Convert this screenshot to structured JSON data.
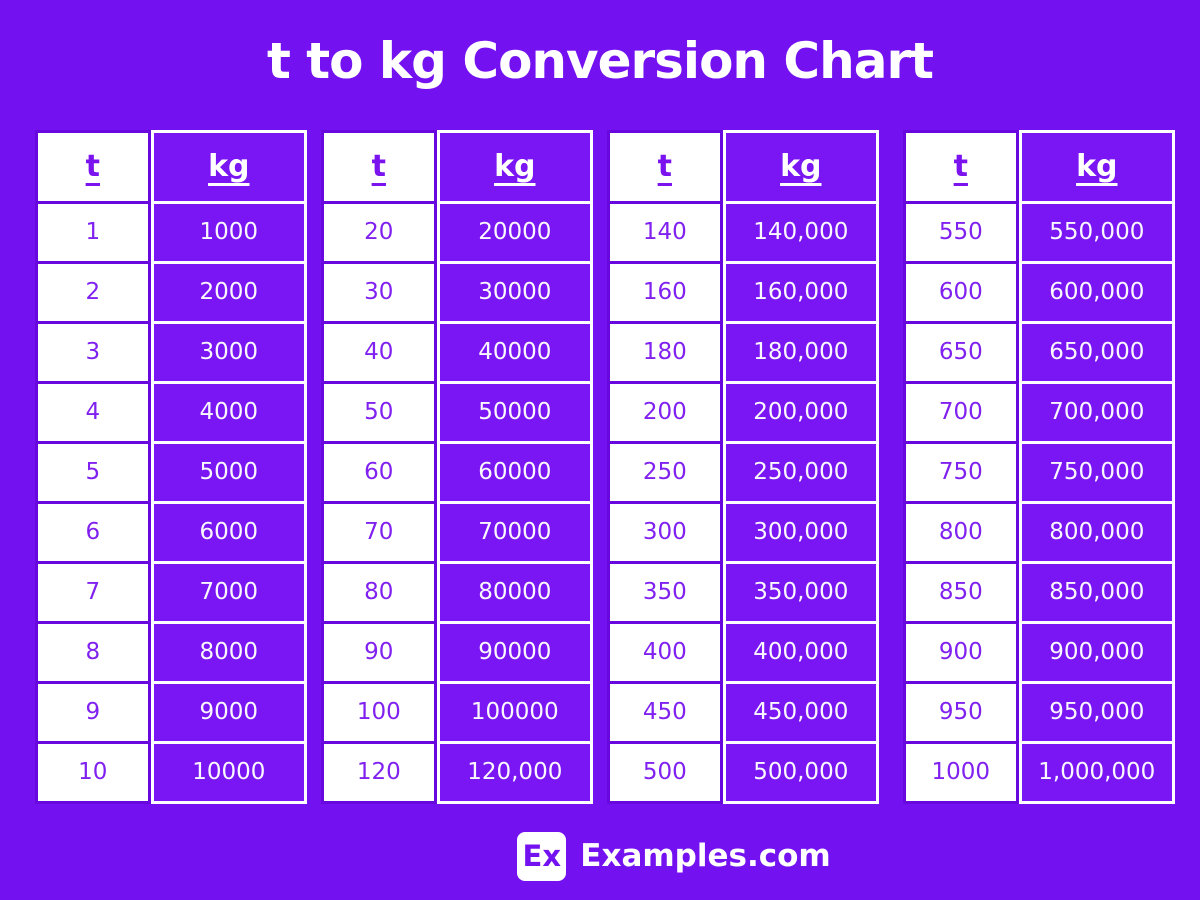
{
  "title": "t to kg Conversion Chart",
  "colors": {
    "background": "#7411F0",
    "kg_cell": "#7A15F3",
    "purple_border": "#6808DE",
    "purple_text": "#8021F0",
    "white": "#FFFFFF"
  },
  "header_labels": {
    "t": "t",
    "kg": "kg"
  },
  "chart_data": {
    "type": "table",
    "title": "t to kg Conversion Chart",
    "columns": [
      "t",
      "kg"
    ],
    "tables": [
      {
        "rows": [
          {
            "t": "1",
            "kg": "1000"
          },
          {
            "t": "2",
            "kg": "2000"
          },
          {
            "t": "3",
            "kg": "3000"
          },
          {
            "t": "4",
            "kg": "4000"
          },
          {
            "t": "5",
            "kg": "5000"
          },
          {
            "t": "6",
            "kg": "6000"
          },
          {
            "t": "7",
            "kg": "7000"
          },
          {
            "t": "8",
            "kg": "8000"
          },
          {
            "t": "9",
            "kg": "9000"
          },
          {
            "t": "10",
            "kg": "10000"
          }
        ]
      },
      {
        "rows": [
          {
            "t": "20",
            "kg": "20000"
          },
          {
            "t": "30",
            "kg": "30000"
          },
          {
            "t": "40",
            "kg": "40000"
          },
          {
            "t": "50",
            "kg": "50000"
          },
          {
            "t": "60",
            "kg": "60000"
          },
          {
            "t": "70",
            "kg": "70000"
          },
          {
            "t": "80",
            "kg": "80000"
          },
          {
            "t": "90",
            "kg": "90000"
          },
          {
            "t": "100",
            "kg": "100000"
          },
          {
            "t": "120",
            "kg": "120,000"
          }
        ]
      },
      {
        "rows": [
          {
            "t": "140",
            "kg": "140,000"
          },
          {
            "t": "160",
            "kg": "160,000"
          },
          {
            "t": "180",
            "kg": "180,000"
          },
          {
            "t": "200",
            "kg": "200,000"
          },
          {
            "t": "250",
            "kg": "250,000"
          },
          {
            "t": "300",
            "kg": "300,000"
          },
          {
            "t": "350",
            "kg": "350,000"
          },
          {
            "t": "400",
            "kg": "400,000"
          },
          {
            "t": "450",
            "kg": "450,000"
          },
          {
            "t": "500",
            "kg": "500,000"
          }
        ]
      },
      {
        "rows": [
          {
            "t": "550",
            "kg": "550,000"
          },
          {
            "t": "600",
            "kg": "600,000"
          },
          {
            "t": "650",
            "kg": "650,000"
          },
          {
            "t": "700",
            "kg": "700,000"
          },
          {
            "t": "750",
            "kg": "750,000"
          },
          {
            "t": "800",
            "kg": "800,000"
          },
          {
            "t": "850",
            "kg": "850,000"
          },
          {
            "t": "900",
            "kg": "900,000"
          },
          {
            "t": "950",
            "kg": "950,000"
          },
          {
            "t": "1000",
            "kg": "1,000,000"
          }
        ]
      }
    ]
  },
  "footer": {
    "badge": "Ex",
    "site": "Examples.com"
  }
}
